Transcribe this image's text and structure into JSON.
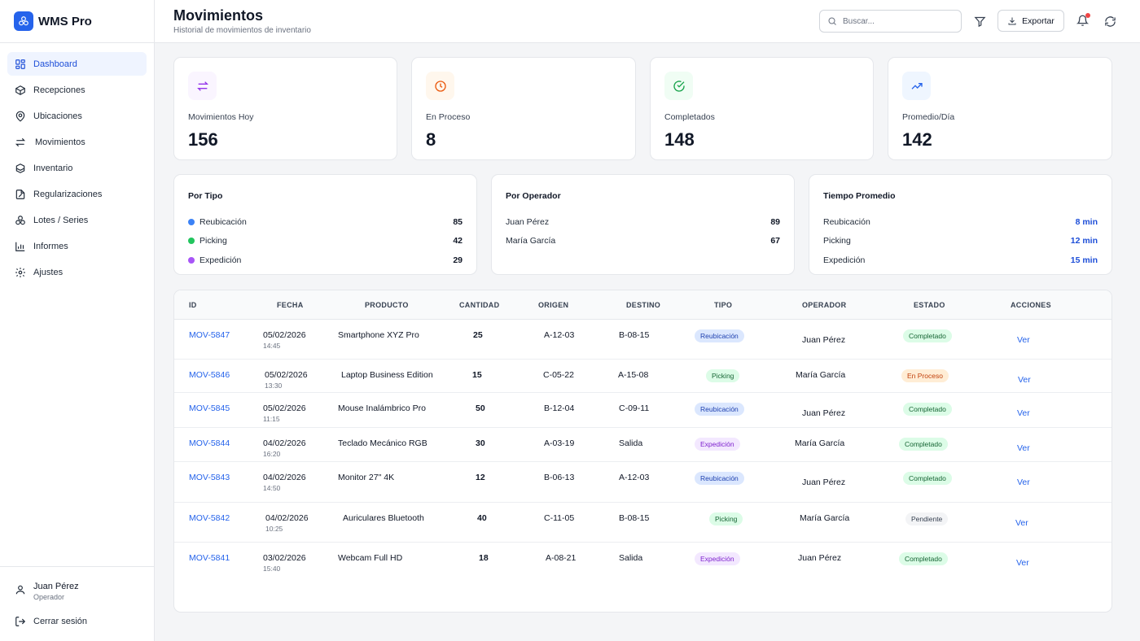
{
  "brand": {
    "name": "WMS Pro"
  },
  "sidebar": {
    "items": [
      {
        "label": "Dashboard",
        "icon": "dashboard-icon",
        "active": true
      },
      {
        "label": "Recepciones",
        "icon": "box-icon"
      },
      {
        "label": "Ubicaciones",
        "icon": "map-pin-icon"
      },
      {
        "label": "Movimientos",
        "icon": "arrows-swap-icon"
      },
      {
        "label": "Inventario",
        "icon": "boxes-icon"
      },
      {
        "label": "Regularizaciones",
        "icon": "file-edit-icon"
      },
      {
        "label": "Lotes / Series",
        "icon": "stack-icon"
      },
      {
        "label": "Informes",
        "icon": "bar-chart-icon"
      },
      {
        "label": "Ajustes",
        "icon": "gear-icon"
      }
    ],
    "user": {
      "name": "Juan Pérez",
      "role": "Operador"
    },
    "logout_label": "Cerrar sesión"
  },
  "header": {
    "title": "Movimientos",
    "subtitle": "Historial de movimientos de inventario",
    "search_placeholder": "Buscar...",
    "export_label": "Exportar"
  },
  "stats": [
    {
      "label": "Movimientos Hoy",
      "value": "156",
      "icon": "arrows-swap-icon",
      "color": "#9333ea",
      "bg": "#faf5ff"
    },
    {
      "label": "En Proceso",
      "value": "8",
      "icon": "clock-icon",
      "color": "#ea580c",
      "bg": "#fff7ed"
    },
    {
      "label": "Completados",
      "value": "148",
      "icon": "check-circle-icon",
      "color": "#16a34a",
      "bg": "#f0fdf4"
    },
    {
      "label": "Promedio/Día",
      "value": "142",
      "icon": "trending-up-icon",
      "color": "#2563eb",
      "bg": "#eff6ff"
    }
  ],
  "summaries": {
    "by_type": {
      "title": "Por Tipo",
      "rows": [
        {
          "label": "Reubicación",
          "value": "85",
          "color": "#3b82f6"
        },
        {
          "label": "Picking",
          "value": "42",
          "color": "#22c55e"
        },
        {
          "label": "Expedición",
          "value": "29",
          "color": "#a855f7"
        }
      ]
    },
    "by_operator": {
      "title": "Por Operador",
      "rows": [
        {
          "label": "Juan Pérez",
          "value": "89"
        },
        {
          "label": "María García",
          "value": "67"
        }
      ]
    },
    "avg_time": {
      "title": "Tiempo Promedio",
      "rows": [
        {
          "label": "Reubicación",
          "value": "8 min"
        },
        {
          "label": "Picking",
          "value": "12 min"
        },
        {
          "label": "Expedición",
          "value": "15 min"
        }
      ]
    }
  },
  "table": {
    "headers": [
      "ID",
      "FECHA",
      "PRODUCTO",
      "CANTIDAD",
      "ORIGEN",
      "DESTINO",
      "TIPO",
      "OPERADOR",
      "ESTADO",
      "ACCIONES"
    ],
    "rows": [
      {
        "id": "MOV-5847",
        "date": "05/02/2026",
        "time": "14:45",
        "product": "Smartphone XYZ Pro",
        "qty": "25",
        "origin": "A-12-03",
        "dest": "B-08-15",
        "type": "Reubicación",
        "operator": "Juan Pérez",
        "status": "Completado",
        "action": "Ver"
      },
      {
        "id": "MOV-5846",
        "date": "05/02/2026",
        "time": "13:30",
        "product": "Laptop Business Edition",
        "qty": "15",
        "origin": "C-05-22",
        "dest": "A-15-08",
        "type": "Picking",
        "operator": "María García",
        "status": "En Proceso",
        "action": "Ver"
      },
      {
        "id": "MOV-5845",
        "date": "05/02/2026",
        "time": "11:15",
        "product": "Mouse Inalámbrico Pro",
        "qty": "50",
        "origin": "B-12-04",
        "dest": "C-09-11",
        "type": "Reubicación",
        "operator": "Juan Pérez",
        "status": "Completado",
        "action": "Ver"
      },
      {
        "id": "MOV-5844",
        "date": "04/02/2026",
        "time": "16:20",
        "product": "Teclado Mecánico RGB",
        "qty": "30",
        "origin": "A-03-19",
        "dest": "Salida",
        "type": "Expedición",
        "operator": "María García",
        "status": "Completado",
        "action": "Ver"
      },
      {
        "id": "MOV-5843",
        "date": "04/02/2026",
        "time": "14:50",
        "product": "Monitor 27\" 4K",
        "qty": "12",
        "origin": "B-06-13",
        "dest": "A-12-03",
        "type": "Reubicación",
        "operator": "Juan Pérez",
        "status": "Completado",
        "action": "Ver"
      },
      {
        "id": "MOV-5842",
        "date": "04/02/2026",
        "time": "10:25",
        "product": "Auriculares Bluetooth",
        "qty": "40",
        "origin": "C-11-05",
        "dest": "B-08-15",
        "type": "Picking",
        "operator": "María García",
        "status": "Pendiente",
        "action": "Ver"
      },
      {
        "id": "MOV-5841",
        "date": "03/02/2026",
        "time": "15:40",
        "product": "Webcam Full HD",
        "qty": "18",
        "origin": "A-08-21",
        "dest": "Salida",
        "type": "Expedición",
        "operator": "Juan Pérez",
        "status": "Completado",
        "action": "Ver"
      }
    ]
  }
}
